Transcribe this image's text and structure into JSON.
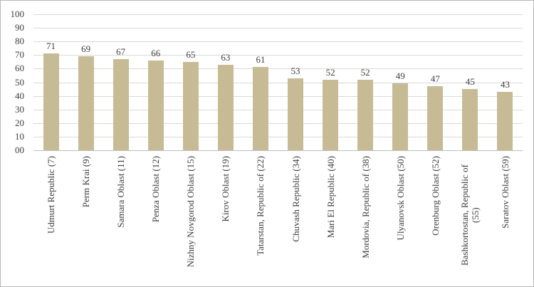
{
  "chart_data": {
    "type": "bar",
    "title": "",
    "categories": [
      "Udmurt Republic (7)",
      "Perm Krai (9)",
      "Samara Oblast (11)",
      "Penza Oblast (12)",
      "Nizhny Novgorod Oblast (15)",
      "Kirov Oblast (19)",
      "Tatarstan, Republic of (22)",
      "Chuvash Republic (34)",
      "Mari El Republic (40)",
      "Mordovia, Republic of (38)",
      "Ulyanovsk Oblast (50)",
      "Orenburg Oblast (52)",
      "Bashkortostan, Republic of (55)",
      "Saratov Oblast (59)"
    ],
    "values": [
      71,
      69,
      67,
      66,
      65,
      63,
      61,
      53,
      52,
      52,
      49,
      47,
      45,
      43
    ],
    "data_labels": [
      "71",
      "69",
      "67",
      "66",
      "65",
      "63",
      "61",
      "53",
      "52",
      "52",
      "49",
      "47",
      "45",
      "43"
    ],
    "xlabel": "",
    "ylabel": "",
    "ylim": [
      0,
      100
    ],
    "ytick_step": 10,
    "ytick_labels": [
      "00",
      "10",
      "20",
      "30",
      "40",
      "50",
      "60",
      "70",
      "80",
      "90",
      "100"
    ],
    "grid": true,
    "legend": false,
    "colors": {
      "bar_fill": "#C6BB95",
      "gridline": "#D9D9D9",
      "axis_line": "#BFBFBF",
      "text": "#404040",
      "frame_border": "#B7B7B7"
    }
  }
}
